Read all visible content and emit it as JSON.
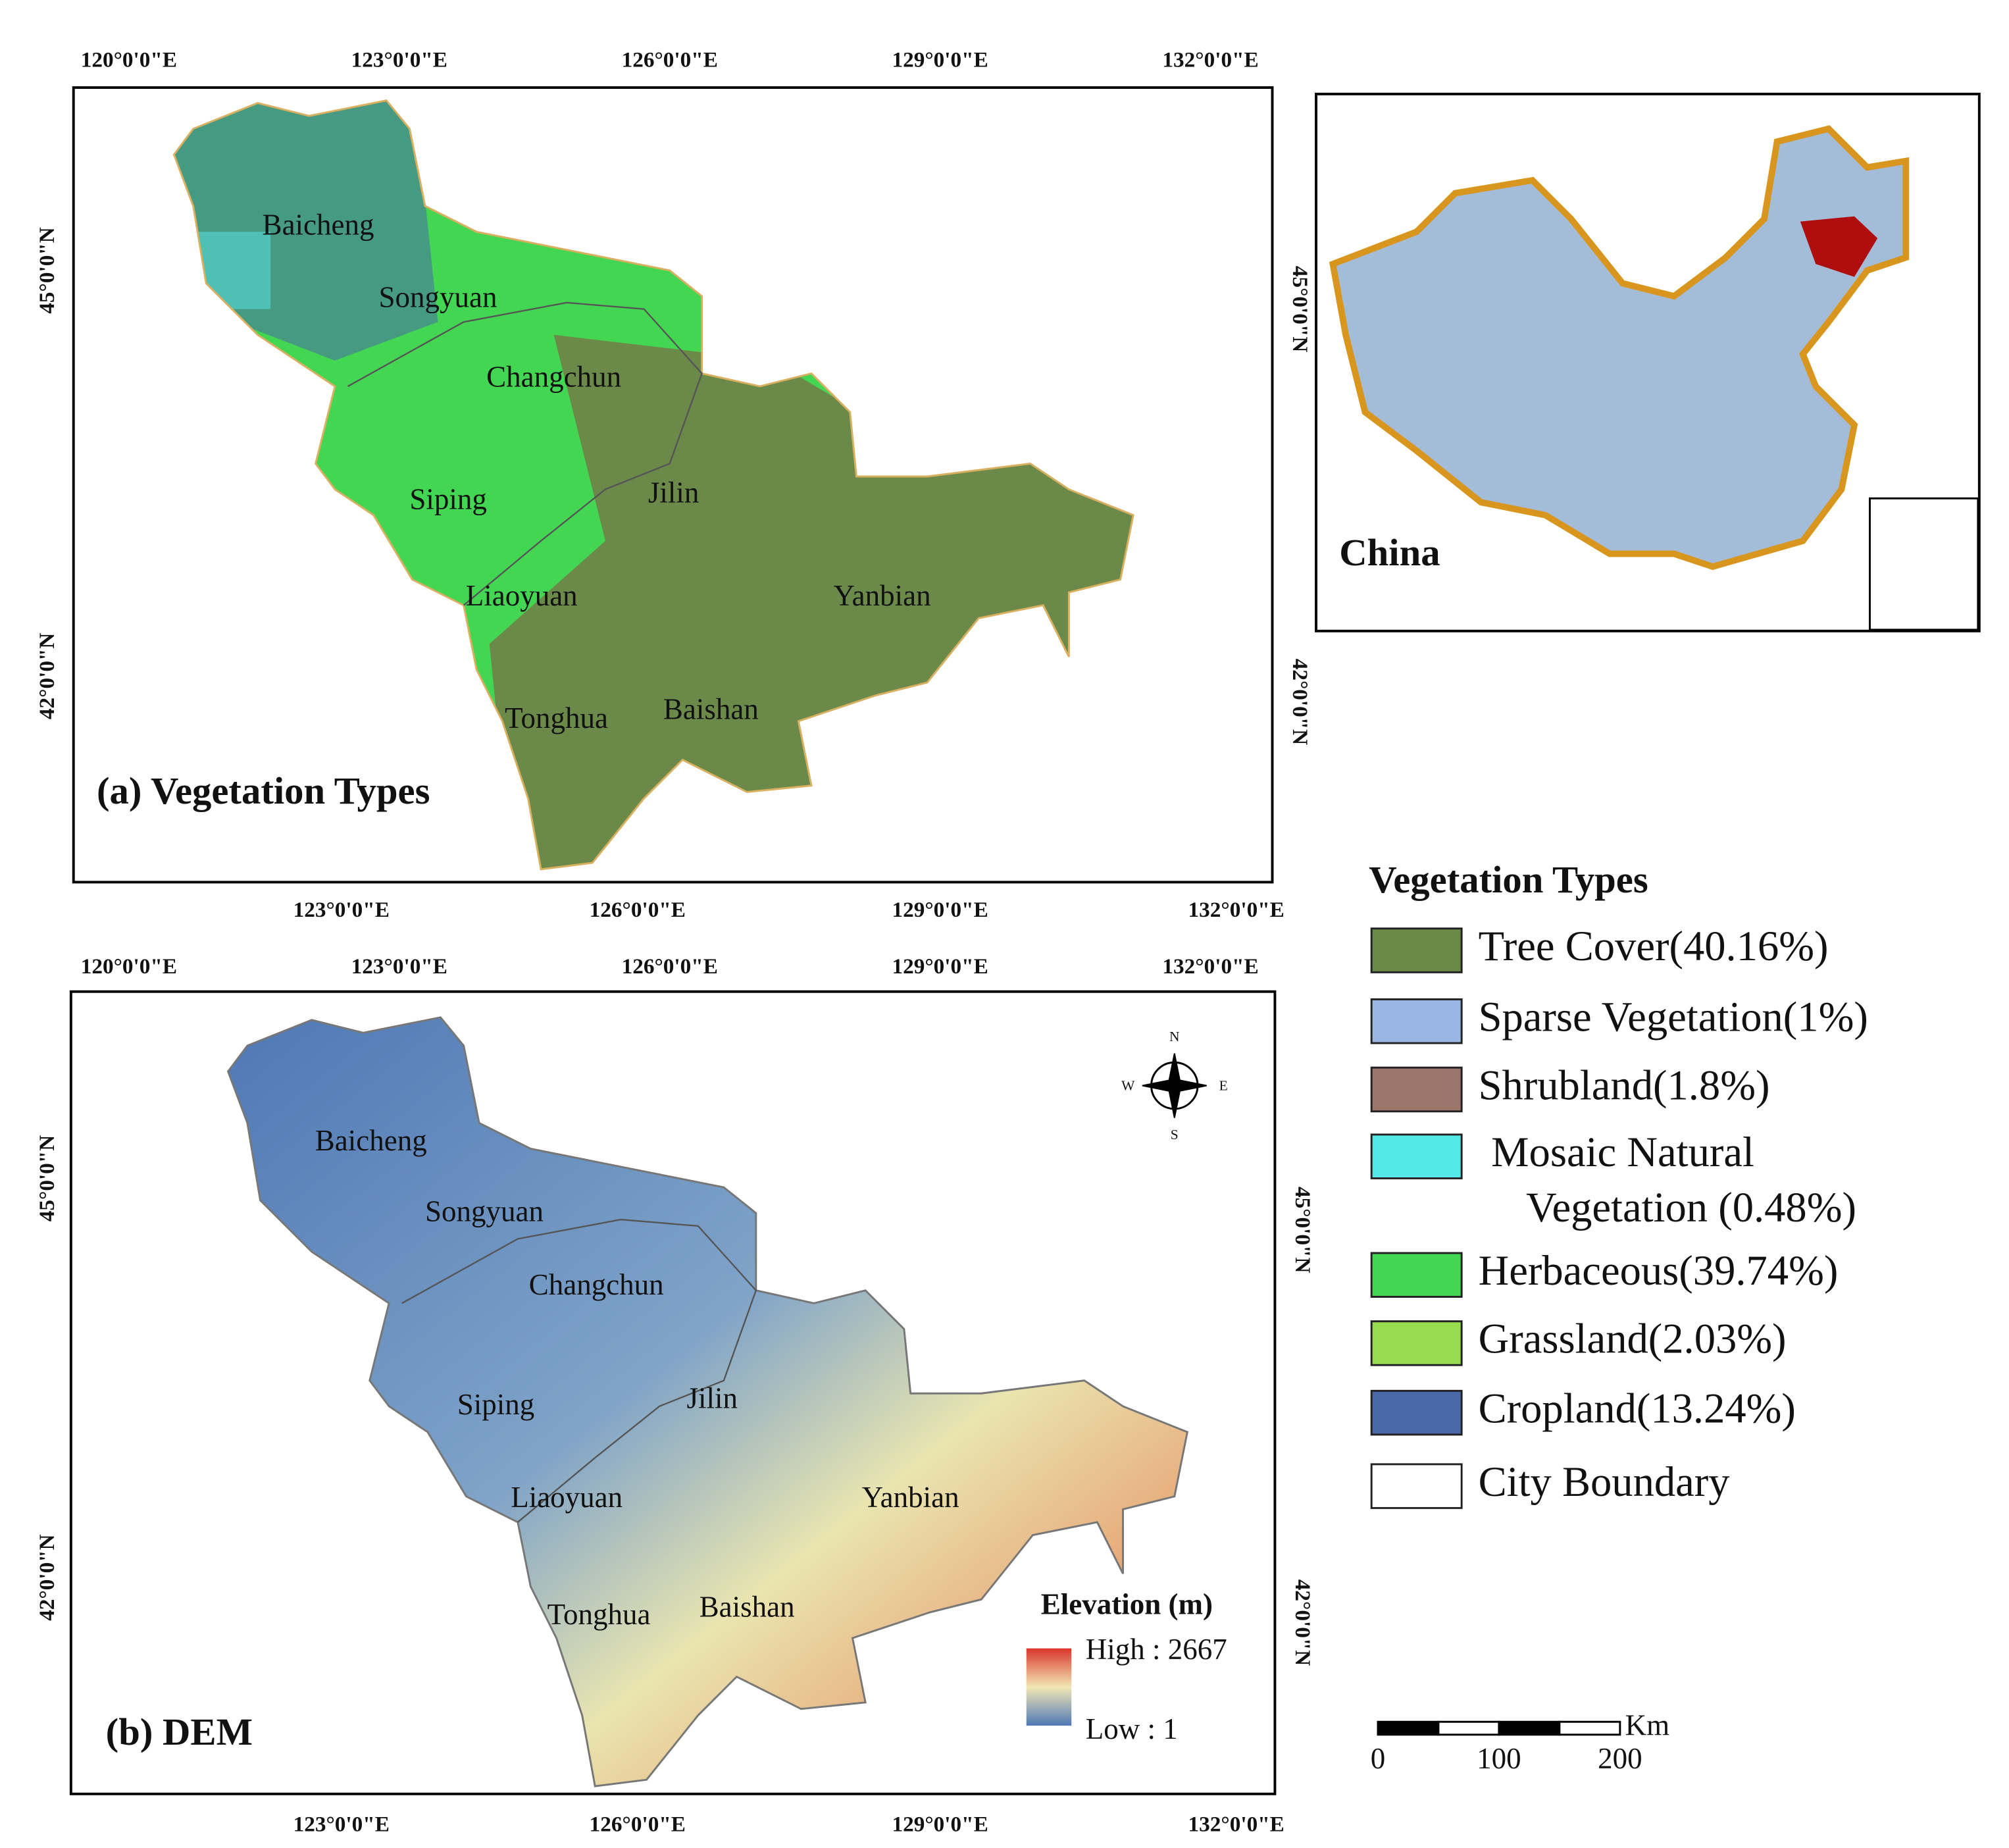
{
  "panel_a": {
    "title": "(a) Vegetation Types",
    "top_ticks": [
      "120°0'0\"E",
      "123°0'0\"E",
      "126°0'0\"E",
      "129°0'0\"E",
      "132°0'0\"E"
    ],
    "bottom_ticks": [
      "123°0'0\"E",
      "126°0'0\"E",
      "129°0'0\"E",
      "132°0'0\"E"
    ],
    "left_ticks": [
      "45°0'0\"N",
      "42°0'0\"N"
    ],
    "right_ticks": [
      "45°0'0\"N",
      "42°0'0\"N"
    ],
    "cities": [
      "Baicheng",
      "Songyuan",
      "Changchun",
      "Siping",
      "Jilin",
      "Liaoyuan",
      "Yanbian",
      "Tonghua",
      "Baishan"
    ]
  },
  "inset": {
    "label": "China"
  },
  "legend": {
    "title": "Vegetation Types",
    "items": [
      {
        "lines": [
          "Tree Cover(40.16%)"
        ],
        "color": "#6b8a4a"
      },
      {
        "lines": [
          "Sparse Vegetation(1%)"
        ],
        "color": "#9ab6e3"
      },
      {
        "lines": [
          "Shrubland(1.8%)"
        ],
        "color": "#9c766a"
      },
      {
        "lines": [
          "Mosaic Natural",
          "Vegetation (0.48%)"
        ],
        "color": "#55e8e8"
      },
      {
        "lines": [
          "Herbaceous(39.74%)"
        ],
        "color": "#43d653"
      },
      {
        "lines": [
          "Grassland(2.03%)"
        ],
        "color": "#96dc4e"
      },
      {
        "lines": [
          "Cropland(13.24%)"
        ],
        "color": "#4969a8"
      },
      {
        "lines": [
          "City Boundary"
        ],
        "color": "#ffffff"
      }
    ]
  },
  "panel_b": {
    "title": "(b) DEM",
    "top_ticks": [
      "120°0'0\"E",
      "123°0'0\"E",
      "126°0'0\"E",
      "129°0'0\"E",
      "132°0'0\"E"
    ],
    "bottom_ticks": [
      "123°0'0\"E",
      "126°0'0\"E",
      "129°0'0\"E",
      "132°0'0\"E"
    ],
    "left_ticks": [
      "45°0'0\"N",
      "42°0'0\"N"
    ],
    "right_ticks": [
      "45°0'0\"N",
      "42°0'0\"N"
    ],
    "cities": [
      "Baicheng",
      "Songyuan",
      "Changchun",
      "Siping",
      "Jilin",
      "Liaoyuan",
      "Yanbian",
      "Tonghua",
      "Baishan"
    ],
    "elevation": {
      "title": "Elevation (m)",
      "high": "High : 2667",
      "low": "Low : 1"
    },
    "compass": {
      "n": "N",
      "w": "W",
      "e": "E",
      "s": "S"
    }
  },
  "scale_bar": {
    "unit": "Km",
    "labels": [
      "0",
      "100",
      "200"
    ]
  }
}
